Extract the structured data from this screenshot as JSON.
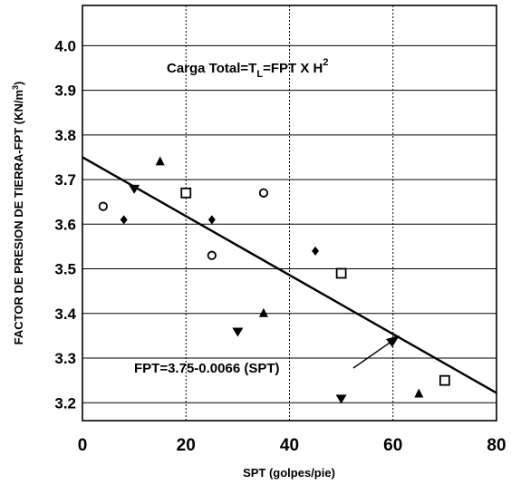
{
  "chart_data": {
    "type": "scatter",
    "xlabel": "SPT (golpes/pie)",
    "ylabel": "FACTOR DE PRESION DE TIERRA-FPT (KN/m",
    "ylabel_sup": "3",
    "ylabel_close": ")",
    "xlim": [
      0,
      80
    ],
    "ylim": [
      3.16,
      4.09
    ],
    "x_ticks": [
      "0",
      "20",
      "40",
      "60",
      "80"
    ],
    "y_ticks": [
      "3.2",
      "3.3",
      "3.4",
      "3.5",
      "3.6",
      "3.7",
      "3.8",
      "3.9",
      "4.0"
    ],
    "grid": {
      "vertical": "dashed",
      "horizontal": "solid"
    },
    "annotation_total": {
      "prefix": "Carga Total=T",
      "sub": "L",
      "mid": "=FPT X H",
      "sup": "2"
    },
    "equation": "FPT=3.75-0.0066 (SPT)",
    "regression": {
      "intercept": 3.75,
      "slope": -0.0066,
      "x_range": [
        0,
        80
      ]
    },
    "series": [
      {
        "marker": "circle",
        "points": [
          [
            4,
            3.64
          ],
          [
            25,
            3.53
          ],
          [
            35,
            3.67
          ]
        ]
      },
      {
        "marker": "diamond",
        "points": [
          [
            8,
            3.61
          ],
          [
            25,
            3.61
          ],
          [
            45,
            3.54
          ]
        ]
      },
      {
        "marker": "triangle-up",
        "points": [
          [
            15,
            3.74
          ],
          [
            35,
            3.4
          ],
          [
            65,
            3.22
          ]
        ]
      },
      {
        "marker": "triangle-down",
        "points": [
          [
            10,
            3.68
          ],
          [
            30,
            3.36
          ],
          [
            50,
            3.21
          ]
        ]
      },
      {
        "marker": "square",
        "points": [
          [
            20,
            3.67
          ],
          [
            50,
            3.49
          ],
          [
            70,
            3.25
          ]
        ]
      }
    ]
  }
}
